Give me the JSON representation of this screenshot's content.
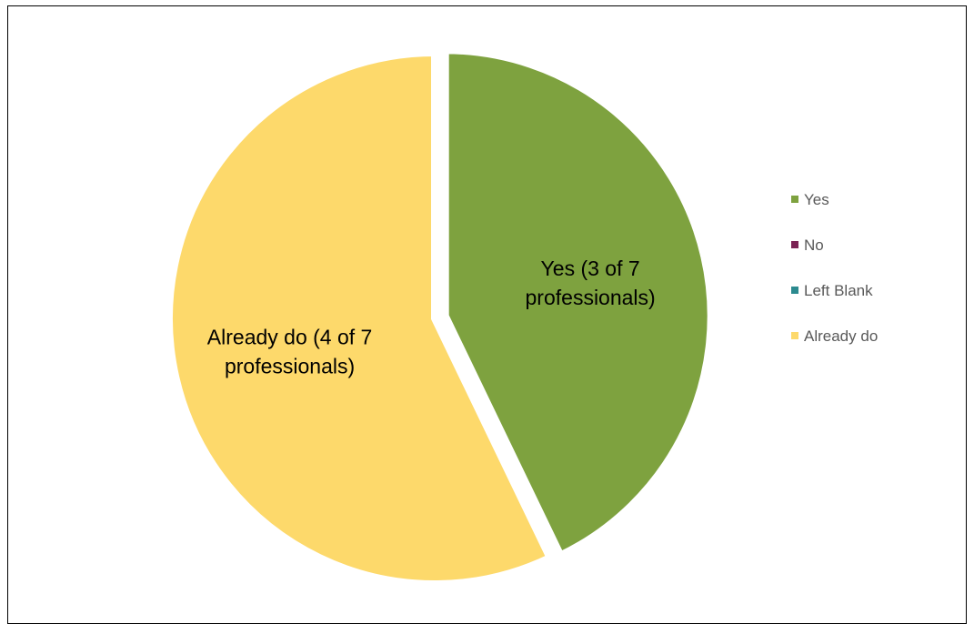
{
  "chart_data": {
    "type": "pie",
    "title": "",
    "categories": [
      "Yes",
      "No",
      "Left Blank",
      "Already do"
    ],
    "values": [
      3,
      0,
      0,
      4
    ],
    "colors": [
      "#7ea23f",
      "#7b2354",
      "#2c8a8f",
      "#fdd96b"
    ],
    "data_labels": [
      [
        "Yes (3 of 7",
        "professionals)"
      ],
      [],
      [],
      [
        "Already do (4 of 7",
        "professionals)"
      ]
    ],
    "exploded": [
      "Yes"
    ],
    "legend_position": "right"
  }
}
